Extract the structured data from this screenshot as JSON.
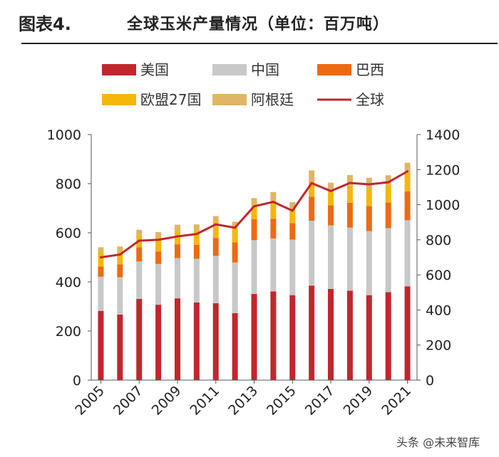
{
  "header": {
    "figure_no": "图表4.",
    "title": "全球玉米产量情况（单位：百万吨）"
  },
  "watermark": "头条 @未来智库",
  "chart_data": {
    "type": "bar",
    "stacked": true,
    "title": "全球玉米产量情况（单位：百万吨）",
    "categories": [
      "2005",
      "2006",
      "2007",
      "2008",
      "2009",
      "2010",
      "2011",
      "2012",
      "2013",
      "2014",
      "2015",
      "2016",
      "2017",
      "2018",
      "2019",
      "2020",
      "2021"
    ],
    "x_tick_labels": [
      "2005",
      "2007",
      "2009",
      "2011",
      "2013",
      "2015",
      "2017",
      "2019",
      "2021"
    ],
    "ylim_left": [
      0,
      1000
    ],
    "ylim_right": [
      0,
      1400
    ],
    "yticks_left": [
      "0",
      "200",
      "400",
      "600",
      "800",
      "1000"
    ],
    "yticks_right": [
      "0",
      "200",
      "400",
      "600",
      "800",
      "1000",
      "1200",
      "1400"
    ],
    "series": [
      {
        "name": "美国",
        "color": "#c0272d",
        "axis": "left",
        "values": [
          282,
          267,
          331,
          307,
          333,
          316,
          313,
          273,
          351,
          361,
          346,
          385,
          371,
          364,
          346,
          358,
          382
        ]
      },
      {
        "name": "中国",
        "color": "#c8c8c8",
        "axis": "left",
        "values": [
          139,
          152,
          152,
          166,
          164,
          178,
          193,
          206,
          219,
          216,
          226,
          264,
          259,
          257,
          261,
          261,
          269
        ]
      },
      {
        "name": "巴西",
        "color": "#ed6a13",
        "axis": "left",
        "values": [
          42,
          52,
          58,
          51,
          56,
          57,
          73,
          82,
          85,
          80,
          67,
          98,
          82,
          101,
          102,
          104,
          118
        ]
      },
      {
        "name": "欧盟27国",
        "color": "#f5b70a",
        "axis": "left",
        "values": [
          57,
          52,
          48,
          57,
          56,
          58,
          66,
          58,
          59,
          68,
          58,
          62,
          60,
          69,
          72,
          70,
          74
        ]
      },
      {
        "name": "阿根廷",
        "color": "#e0b565",
        "axis": "left",
        "values": [
          21,
          21,
          23,
          22,
          24,
          25,
          23,
          26,
          27,
          41,
          28,
          45,
          32,
          44,
          43,
          41,
          42
        ]
      },
      {
        "name": "全球",
        "color": "#c0272d",
        "axis": "right",
        "type": "line",
        "values": [
          700,
          716,
          795,
          800,
          819,
          833,
          888,
          869,
          991,
          1016,
          966,
          1123,
          1078,
          1124,
          1116,
          1128,
          1190
        ]
      }
    ]
  }
}
